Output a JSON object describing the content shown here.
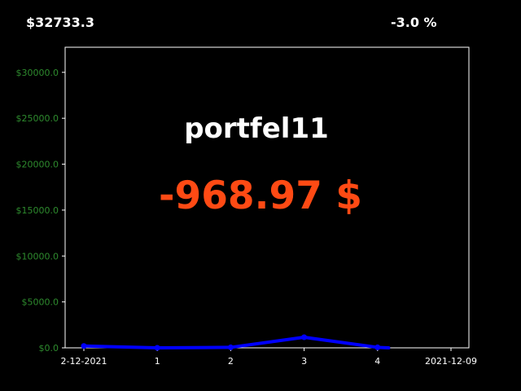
{
  "header": {
    "total_value": "$32733.3",
    "change_percent": "-3.0 %"
  },
  "overlay": {
    "portfolio_name": "portfel11",
    "profit_loss": "-968.97 $"
  },
  "colors": {
    "background": "#000000",
    "text": "#ffffff",
    "ytick": "#2e8b2e",
    "loss": "#ff4a14",
    "line": "#0000ff",
    "frame": "#ffffff"
  },
  "chart_data": {
    "type": "line",
    "title": "",
    "xlabel": "",
    "ylabel": "",
    "categories": [
      "2-12-2021",
      "1",
      "2",
      "3",
      "4",
      "2021-12-09"
    ],
    "x": [
      0,
      1,
      2,
      3,
      4,
      5
    ],
    "ylim": [
      0,
      32733.3
    ],
    "yticks": [
      0,
      5000,
      10000,
      15000,
      20000,
      25000,
      30000
    ],
    "ytick_labels": [
      "$0.0",
      "$5000.0",
      "$10000.0",
      "$15000.0",
      "$20000.0",
      "$25000.0",
      "$30000.0"
    ],
    "grid": false,
    "legend": "none",
    "series": [
      {
        "x": [
          0,
          1,
          2,
          3,
          4,
          4.15
        ],
        "values": [
          200,
          0,
          50,
          1150,
          50,
          0
        ]
      }
    ]
  }
}
